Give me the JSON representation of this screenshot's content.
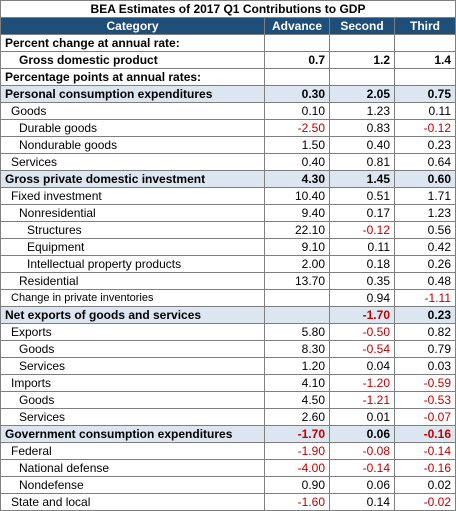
{
  "title": "BEA Estimates of 2017 Q1 Contributions to GDP",
  "headers": [
    "Category",
    "Advance",
    "Second",
    "Third"
  ],
  "rows": [
    {
      "label": "Percent change at annual rate:",
      "style": "bold",
      "indent": 0,
      "advance": "",
      "second": "",
      "third": ""
    },
    {
      "label": "Gross domestic product",
      "style": "bold",
      "indent": 2,
      "advance": "0.7",
      "second": "1.2",
      "third": "1.4"
    },
    {
      "label": "Percentage points at annual rates:",
      "style": "bold",
      "indent": 0,
      "advance": "",
      "second": "",
      "third": ""
    },
    {
      "label": "Personal consumption expenditures",
      "style": "section",
      "indent": 0,
      "advance": "0.30",
      "second": "2.05",
      "third": "0.75"
    },
    {
      "label": "Goods",
      "style": "normal",
      "indent": 1,
      "advance": "0.10",
      "second": "1.23",
      "third": "0.11"
    },
    {
      "label": "Durable goods",
      "style": "normal",
      "indent": 2,
      "advance": "-2.50",
      "second": "0.83",
      "third": "-0.12"
    },
    {
      "label": "Nondurable goods",
      "style": "normal",
      "indent": 2,
      "advance": "1.50",
      "second": "0.40",
      "third": "0.23"
    },
    {
      "label": "Services",
      "style": "normal",
      "indent": 1,
      "advance": "0.40",
      "second": "0.81",
      "third": "0.64"
    },
    {
      "label": "Gross private domestic investment",
      "style": "section",
      "indent": 0,
      "advance": "4.30",
      "second": "1.45",
      "third": "0.60"
    },
    {
      "label": "Fixed investment",
      "style": "normal",
      "indent": 1,
      "advance": "10.40",
      "second": "0.51",
      "third": "1.71"
    },
    {
      "label": "Nonresidential",
      "style": "normal",
      "indent": 2,
      "advance": "9.40",
      "second": "0.17",
      "third": "1.23"
    },
    {
      "label": "Structures",
      "style": "normal",
      "indent": 3,
      "advance": "22.10",
      "second": "-0.12",
      "third": "0.56"
    },
    {
      "label": "Equipment",
      "style": "normal",
      "indent": 3,
      "advance": "9.10",
      "second": "0.11",
      "third": "0.42"
    },
    {
      "label": "Intellectual property products",
      "style": "normal",
      "indent": 3,
      "advance": "2.00",
      "second": "0.18",
      "third": "0.26"
    },
    {
      "label": "Residential",
      "style": "normal",
      "indent": 2,
      "advance": "13.70",
      "second": "0.35",
      "third": "0.48"
    },
    {
      "label": "Change in private inventories",
      "style": "small",
      "indent": 1,
      "advance": "",
      "second": "0.94",
      "third": "-1.11"
    },
    {
      "label": "Net exports of goods and services",
      "style": "section",
      "indent": 0,
      "advance": "",
      "second": "-1.70",
      "third": "0.23"
    },
    {
      "label": "Exports",
      "style": "normal",
      "indent": 1,
      "advance": "5.80",
      "second": "-0.50",
      "third": "0.82"
    },
    {
      "label": "Goods",
      "style": "normal",
      "indent": 2,
      "advance": "8.30",
      "second": "-0.54",
      "third": "0.79"
    },
    {
      "label": "Services",
      "style": "normal",
      "indent": 2,
      "advance": "1.20",
      "second": "0.04",
      "third": "0.03"
    },
    {
      "label": "Imports",
      "style": "normal",
      "indent": 1,
      "advance": "4.10",
      "second": "-1.20",
      "third": "-0.59"
    },
    {
      "label": "Goods",
      "style": "normal",
      "indent": 2,
      "advance": "4.50",
      "second": "-1.21",
      "third": "-0.53"
    },
    {
      "label": "Services",
      "style": "normal",
      "indent": 2,
      "advance": "2.60",
      "second": "0.01",
      "third": "-0.07"
    },
    {
      "label": "Government consumption expenditures",
      "style": "section",
      "indent": 0,
      "advance": "-1.70",
      "second": "0.06",
      "third": "-0.16"
    },
    {
      "label": "Federal",
      "style": "normal",
      "indent": 1,
      "advance": "-1.90",
      "second": "-0.08",
      "third": "-0.14"
    },
    {
      "label": "National defense",
      "style": "normal",
      "indent": 2,
      "advance": "-4.00",
      "second": "-0.14",
      "third": "-0.16"
    },
    {
      "label": "Nondefense",
      "style": "normal",
      "indent": 2,
      "advance": "0.90",
      "second": "0.06",
      "third": "0.02"
    },
    {
      "label": "State and local",
      "style": "normal",
      "indent": 1,
      "advance": "-1.60",
      "second": "0.14",
      "third": "-0.02"
    }
  ],
  "colors": {
    "header_bg": "#1f4e79",
    "section_bg": "#dce6f1",
    "negative": "#c00000"
  }
}
